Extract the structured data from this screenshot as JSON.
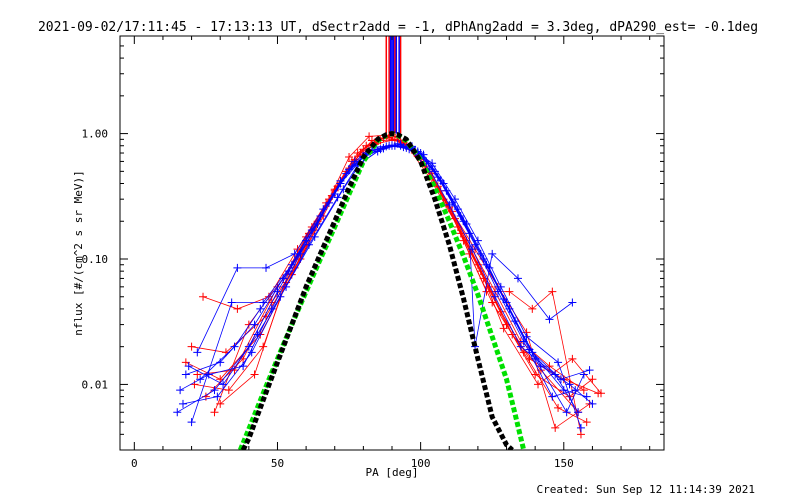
{
  "chart_data": {
    "type": "line",
    "title": "2021-09-02/17:11:45 - 17:13:13 UT, dSectr2add = -1, dPhAng2add = 3.3deg, dPA290_est= -0.1deg",
    "xlabel": "PA [deg]",
    "ylabel": "nflux [#/(cm^2 s sr MeV)]",
    "footer": "Created: Sun Sep 12 11:14:39 2021",
    "xlim": [
      -5,
      185
    ],
    "ylim": [
      0.003,
      6
    ],
    "yscale": "log",
    "grid": false,
    "x_ticks": [
      0,
      50,
      100,
      150
    ],
    "x_tick_labels": [
      "0",
      "50",
      "100",
      "150"
    ],
    "y_ticks": [
      0.01,
      0.1,
      1.0
    ],
    "y_tick_labels": [
      "0.01",
      "0.10",
      "1.00"
    ],
    "colors": {
      "red": "#ff0000",
      "blue": "#0000ff",
      "green": "#00e000",
      "black": "#000000"
    },
    "vertical_lines": [
      {
        "color": "red",
        "x": [
          88.0,
          89.0,
          91.0,
          93.0
        ]
      },
      {
        "color": "blue",
        "x": [
          89.5,
          90.0,
          90.5,
          91.5,
          92.5
        ]
      }
    ],
    "fit_curves": [
      {
        "color": "green",
        "style": "thick dashed",
        "x": [
          37,
          40,
          45,
          50,
          55,
          60,
          65,
          70,
          75,
          80,
          85,
          88,
          90,
          92,
          95,
          100,
          105,
          110,
          115,
          120,
          125,
          130,
          133,
          136
        ],
        "y": [
          0.003,
          0.0044,
          0.0085,
          0.016,
          0.03,
          0.055,
          0.1,
          0.18,
          0.33,
          0.6,
          0.88,
          0.97,
          1.0,
          0.97,
          0.88,
          0.62,
          0.37,
          0.2,
          0.105,
          0.052,
          0.024,
          0.011,
          0.0058,
          0.003
        ]
      },
      {
        "color": "black",
        "style": "thick dashed",
        "x": [
          38,
          40,
          45,
          50,
          55,
          60,
          65,
          70,
          75,
          80,
          85,
          88,
          90,
          92,
          95,
          100,
          105,
          110,
          115,
          120,
          125,
          130,
          132
        ],
        "y": [
          0.003,
          0.0037,
          0.0075,
          0.015,
          0.03,
          0.06,
          0.11,
          0.2,
          0.37,
          0.65,
          0.9,
          0.98,
          1.0,
          0.98,
          0.9,
          0.6,
          0.3,
          0.13,
          0.048,
          0.016,
          0.0055,
          0.0033,
          0.003
        ]
      }
    ],
    "series": [
      {
        "color": "red",
        "x": [
          22,
          35,
          50,
          60,
          68,
          75,
          82,
          88,
          95,
          102,
          110,
          118,
          126,
          135,
          145,
          157
        ],
        "y": [
          0.012,
          0.013,
          0.06,
          0.13,
          0.3,
          0.65,
          0.95,
          0.97,
          0.8,
          0.55,
          0.26,
          0.12,
          0.055,
          0.022,
          0.014,
          0.009
        ]
      },
      {
        "color": "red",
        "x": [
          25,
          38,
          48,
          58,
          66,
          74,
          84,
          90,
          97,
          104,
          112,
          120,
          128,
          138,
          150,
          162
        ],
        "y": [
          0.008,
          0.016,
          0.045,
          0.1,
          0.22,
          0.5,
          0.85,
          0.98,
          0.75,
          0.48,
          0.21,
          0.09,
          0.038,
          0.016,
          0.011,
          0.0085
        ]
      },
      {
        "color": "red",
        "x": [
          20,
          32,
          46,
          56,
          64,
          72,
          80,
          87,
          94,
          100,
          108,
          116,
          124,
          132,
          142,
          155
        ],
        "y": [
          0.02,
          0.018,
          0.035,
          0.085,
          0.2,
          0.42,
          0.75,
          0.92,
          0.85,
          0.62,
          0.3,
          0.14,
          0.06,
          0.025,
          0.013,
          0.006
        ]
      },
      {
        "color": "red",
        "x": [
          28,
          40,
          52,
          60,
          70,
          78,
          85,
          92,
          98,
          106,
          114,
          122,
          130,
          140,
          152,
          160
        ],
        "y": [
          0.006,
          0.03,
          0.07,
          0.15,
          0.35,
          0.7,
          0.9,
          0.95,
          0.7,
          0.38,
          0.16,
          0.07,
          0.03,
          0.012,
          0.008,
          0.011
        ]
      },
      {
        "color": "red",
        "x": [
          18,
          30,
          44,
          55,
          63,
          71,
          79,
          86,
          93,
          101,
          109,
          117,
          125,
          136,
          148,
          158
        ],
        "y": [
          0.015,
          0.011,
          0.025,
          0.075,
          0.17,
          0.38,
          0.7,
          0.88,
          0.88,
          0.58,
          0.28,
          0.11,
          0.045,
          0.018,
          0.0065,
          0.005
        ]
      },
      {
        "color": "red",
        "x": [
          24,
          36,
          47,
          57,
          67,
          76,
          83,
          89,
          96,
          103,
          111,
          119,
          127,
          137,
          147,
          159
        ],
        "y": [
          0.05,
          0.04,
          0.05,
          0.12,
          0.28,
          0.6,
          0.88,
          0.93,
          0.78,
          0.5,
          0.24,
          0.12,
          0.06,
          0.026,
          0.0045,
          0.007
        ]
      },
      {
        "color": "red",
        "x": [
          30,
          42,
          54,
          62,
          69,
          77,
          84,
          91,
          99,
          107,
          115,
          123,
          131,
          139,
          146,
          156
        ],
        "y": [
          0.007,
          0.012,
          0.08,
          0.18,
          0.32,
          0.62,
          0.82,
          0.9,
          0.66,
          0.35,
          0.14,
          0.055,
          0.055,
          0.04,
          0.055,
          0.004
        ]
      },
      {
        "color": "red",
        "x": [
          21,
          33,
          45,
          53,
          61,
          70,
          81,
          88,
          95,
          103,
          113,
          121,
          129,
          141,
          153,
          163
        ],
        "y": [
          0.01,
          0.009,
          0.02,
          0.065,
          0.16,
          0.36,
          0.8,
          0.96,
          0.82,
          0.45,
          0.18,
          0.08,
          0.028,
          0.01,
          0.016,
          0.0085
        ]
      },
      {
        "color": "blue",
        "x": [
          15,
          28,
          40,
          50,
          60,
          70,
          77,
          84,
          90,
          96,
          103,
          110,
          118,
          126,
          135,
          147,
          155
        ],
        "y": [
          0.006,
          0.009,
          0.02,
          0.055,
          0.14,
          0.33,
          0.6,
          0.78,
          0.8,
          0.75,
          0.52,
          0.27,
          0.12,
          0.05,
          0.02,
          0.012,
          0.006
        ]
      },
      {
        "color": "blue",
        "x": [
          18,
          30,
          42,
          52,
          62,
          72,
          80,
          87,
          93,
          99,
          106,
          114,
          122,
          130,
          139,
          150,
          158
        ],
        "y": [
          0.012,
          0.015,
          0.03,
          0.07,
          0.17,
          0.4,
          0.65,
          0.76,
          0.82,
          0.72,
          0.45,
          0.22,
          0.1,
          0.045,
          0.018,
          0.009,
          0.008
        ]
      },
      {
        "color": "blue",
        "x": [
          20,
          34,
          45,
          55,
          65,
          74,
          81,
          88,
          94,
          101,
          108,
          116,
          124,
          133,
          142,
          152,
          160
        ],
        "y": [
          0.005,
          0.045,
          0.045,
          0.09,
          0.22,
          0.48,
          0.7,
          0.79,
          0.78,
          0.68,
          0.4,
          0.19,
          0.085,
          0.032,
          0.014,
          0.01,
          0.007
        ]
      },
      {
        "color": "blue",
        "x": [
          16,
          26,
          38,
          48,
          58,
          68,
          76,
          83,
          90,
          97,
          104,
          112,
          120,
          128,
          137,
          148,
          156
        ],
        "y": [
          0.009,
          0.012,
          0.014,
          0.04,
          0.11,
          0.28,
          0.55,
          0.74,
          0.81,
          0.77,
          0.58,
          0.3,
          0.14,
          0.06,
          0.024,
          0.015,
          0.0045
        ]
      },
      {
        "color": "blue",
        "x": [
          22,
          36,
          46,
          56,
          66,
          75,
          82,
          89,
          95,
          102,
          109,
          117,
          119,
          125,
          134,
          145,
          153
        ],
        "y": [
          0.018,
          0.085,
          0.085,
          0.11,
          0.25,
          0.52,
          0.72,
          0.8,
          0.77,
          0.6,
          0.35,
          0.16,
          0.02,
          0.11,
          0.07,
          0.033,
          0.045
        ]
      },
      {
        "color": "blue",
        "x": [
          19,
          31,
          43,
          53,
          63,
          73,
          79,
          86,
          92,
          98,
          105,
          113,
          121,
          129,
          138,
          149,
          159
        ],
        "y": [
          0.014,
          0.01,
          0.025,
          0.06,
          0.15,
          0.36,
          0.58,
          0.75,
          0.83,
          0.74,
          0.5,
          0.25,
          0.11,
          0.048,
          0.019,
          0.011,
          0.013
        ]
      },
      {
        "color": "blue",
        "x": [
          17,
          29,
          41,
          51,
          61,
          71,
          78,
          85,
          91,
          97,
          104,
          111,
          119,
          127,
          136,
          146,
          154
        ],
        "y": [
          0.007,
          0.008,
          0.018,
          0.05,
          0.13,
          0.31,
          0.56,
          0.72,
          0.8,
          0.79,
          0.55,
          0.28,
          0.13,
          0.055,
          0.022,
          0.008,
          0.009
        ]
      },
      {
        "color": "blue",
        "x": [
          23,
          35,
          44,
          54,
          64,
          72,
          80,
          87,
          93,
          100,
          107,
          115,
          123,
          131,
          140,
          151,
          157
        ],
        "y": [
          0.011,
          0.02,
          0.04,
          0.08,
          0.19,
          0.42,
          0.66,
          0.77,
          0.8,
          0.7,
          0.42,
          0.2,
          0.09,
          0.04,
          0.016,
          0.006,
          0.012
        ]
      }
    ]
  }
}
